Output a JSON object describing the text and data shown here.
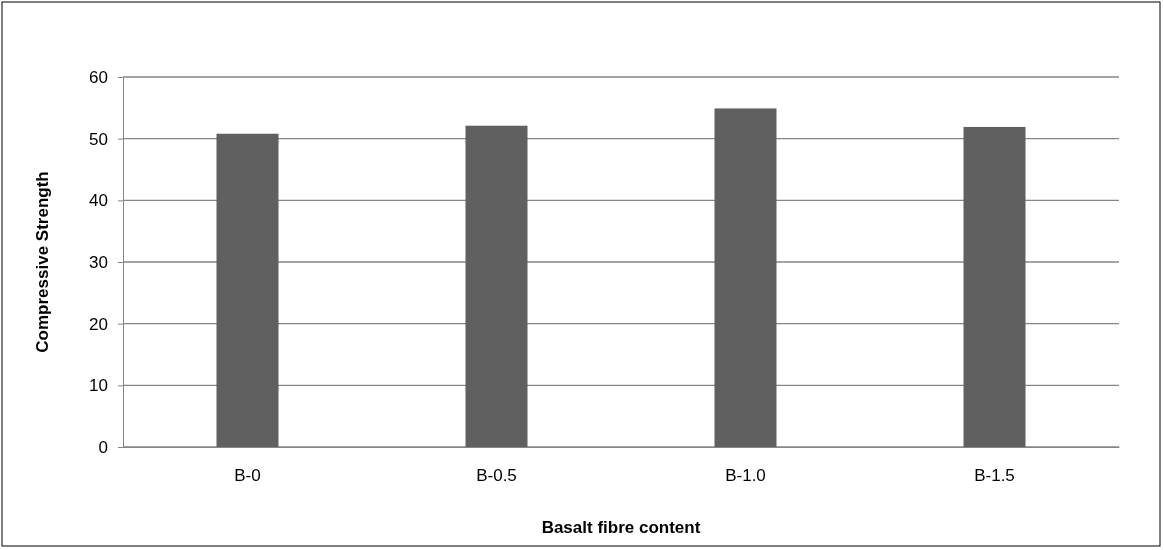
{
  "chart_data": {
    "type": "bar",
    "xlabel": "Basalt fibre content",
    "ylabel": "Compressive Strength",
    "categories": [
      "B-0",
      "B-0.5",
      "B-1.0",
      "B-1.5"
    ],
    "values": [
      50.8,
      52.1,
      54.9,
      51.9
    ],
    "color": "#606060",
    "ylim": [
      0,
      60
    ],
    "yticks": [
      0,
      10,
      20,
      30,
      40,
      50,
      60
    ],
    "grid": "y"
  }
}
